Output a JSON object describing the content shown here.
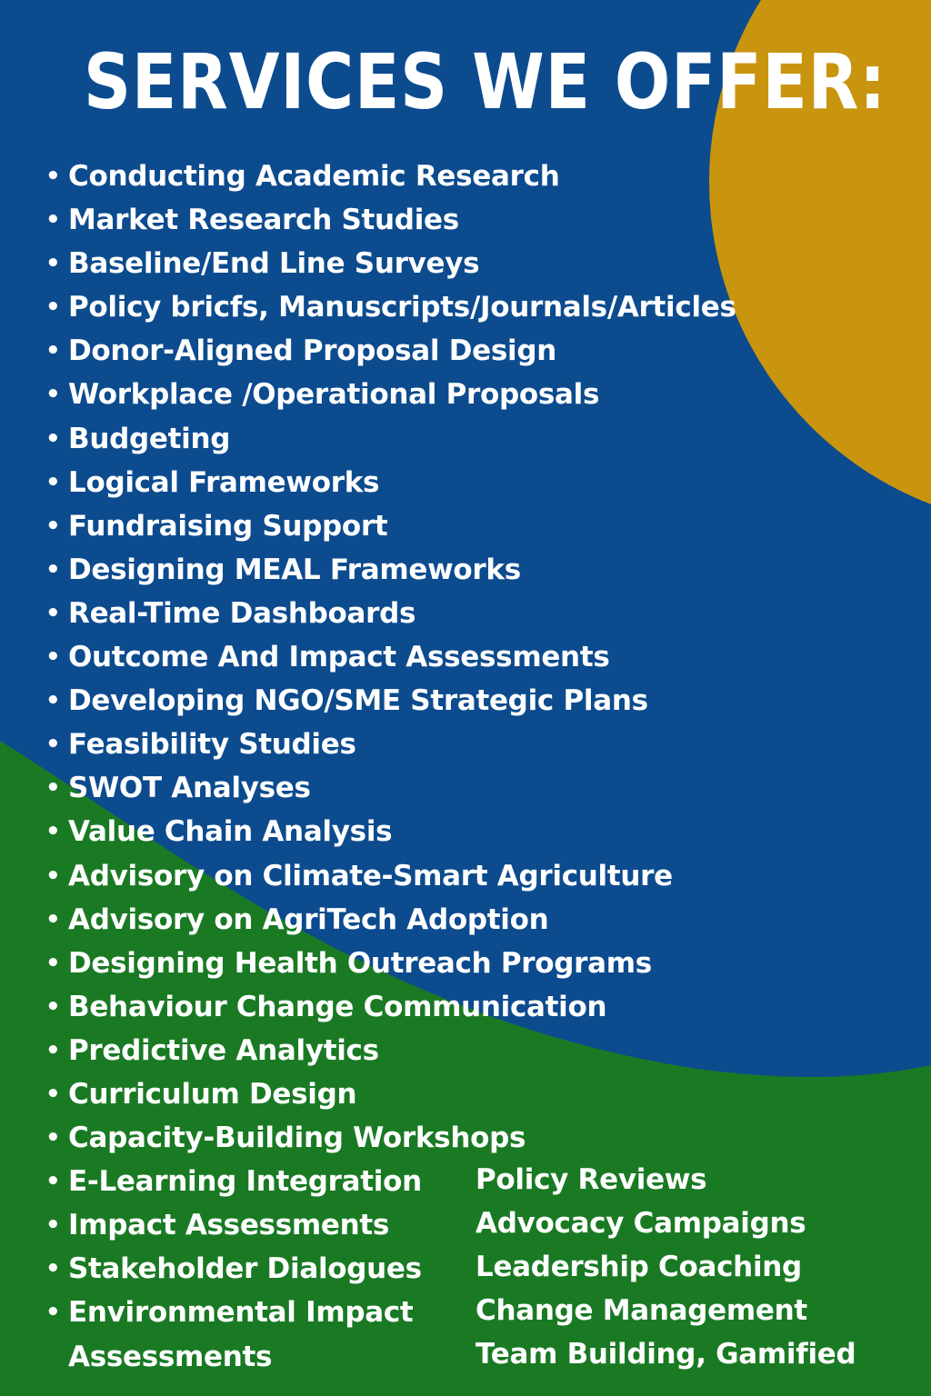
{
  "title": "SERVICES WE OFFER:",
  "colors": {
    "blue": "#0c4b8e",
    "green": "#1a7a24",
    "gold": "#c9950f",
    "text": "#ffffff"
  },
  "services_left": [
    "Conducting Academic Research",
    "Market Research Studies",
    "Baseline/End Line Surveys",
    "Policy bricfs, Manuscripts/Journals/Articles",
    "Donor-Aligned Proposal Design",
    "Workplace /Operational Proposals",
    "Budgeting",
    "Logical Frameworks",
    "Fundraising Support",
    "Designing MEAL Frameworks",
    "Real-Time Dashboards",
    "Outcome And Impact Assessments",
    "Developing NGO/SME Strategic Plans",
    "Feasibility Studies",
    "SWOT Analyses",
    "Value Chain Analysis",
    "Advisory on Climate-Smart Agriculture",
    "Advisory on AgriTech Adoption",
    "Designing Health Outreach Programs",
    "Behaviour Change Communication",
    "Predictive Analytics",
    "Curriculum Design",
    "Capacity-Building Workshops",
    "E-Learning Integration",
    "Impact Assessments",
    "Stakeholder Dialogues",
    "Environmental Impact",
    "Assessments"
  ],
  "services_right": [
    "Policy Reviews",
    "Advocacy Campaigns",
    "Leadership Coaching",
    "Change Management",
    "Team Building, Gamified"
  ]
}
